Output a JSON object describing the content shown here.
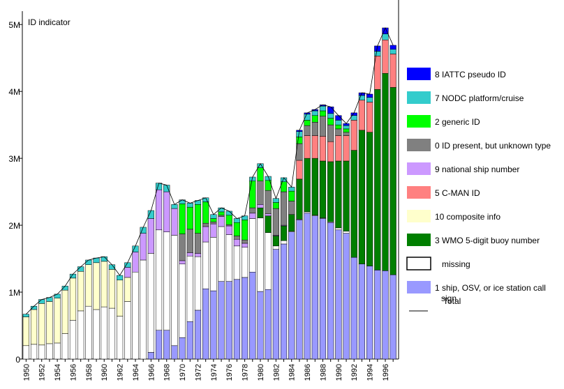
{
  "chart_data": {
    "type": "bar",
    "stacked": true,
    "title": "ID indicator",
    "xlabel": "",
    "ylabel": "",
    "ylim": [
      0,
      5200000
    ],
    "y_ticks": [
      {
        "value": 0,
        "label": "0"
      },
      {
        "value": 1000000,
        "label": "1M"
      },
      {
        "value": 2000000,
        "label": "2M"
      },
      {
        "value": 3000000,
        "label": "3M"
      },
      {
        "value": 4000000,
        "label": "4M"
      },
      {
        "value": 5000000,
        "label": "5M"
      }
    ],
    "categories": [
      "1950",
      "1951",
      "1952",
      "1953",
      "1954",
      "1955",
      "1956",
      "1957",
      "1958",
      "1959",
      "1960",
      "1961",
      "1962",
      "1963",
      "1964",
      "1965",
      "1966",
      "1967",
      "1968",
      "1969",
      "1970",
      "1971",
      "1972",
      "1973",
      "1974",
      "1975",
      "1976",
      "1977",
      "1978",
      "1979",
      "1980",
      "1981",
      "1982",
      "1983",
      "1984",
      "1985",
      "1986",
      "1987",
      "1988",
      "1989",
      "1990",
      "1991",
      "1992",
      "1993",
      "1994",
      "1995",
      "1996",
      "1997"
    ],
    "x_tick_labels": [
      "1950",
      "1952",
      "1954",
      "1956",
      "1958",
      "1960",
      "1962",
      "1964",
      "1966",
      "1968",
      "1970",
      "1972",
      "1974",
      "1976",
      "1978",
      "1980",
      "1982",
      "1984",
      "1986",
      "1988",
      "1990",
      "1992",
      "1994",
      "1996"
    ],
    "grid": false,
    "legend_position": "right",
    "series": [
      {
        "name": "1 ship, OSV, or ice station call sign",
        "color": "#9999ff",
        "values": [
          0,
          0,
          0,
          0,
          0,
          0,
          0,
          0,
          0,
          0,
          0,
          0,
          0,
          0,
          0,
          0,
          100000,
          430000,
          430000,
          200000,
          320000,
          560000,
          730000,
          1050000,
          1020000,
          1160000,
          1160000,
          1190000,
          1220000,
          1300000,
          1010000,
          1040000,
          1640000,
          1720000,
          1900000,
          2080000,
          2180000,
          2140000,
          2100000,
          2040000,
          1930000,
          1880000,
          1520000,
          1420000,
          1390000,
          1330000,
          1320000,
          1260000
        ]
      },
      {
        "name": "missing",
        "color": "#ffffff",
        "values": [
          200000,
          220000,
          210000,
          230000,
          240000,
          380000,
          580000,
          720000,
          790000,
          740000,
          780000,
          760000,
          640000,
          860000,
          1300000,
          1480000,
          1480000,
          1500000,
          1470000,
          1650000,
          1100000,
          980000,
          800000,
          700000,
          800000,
          820000,
          700000,
          500000,
          450000,
          800000,
          1100000,
          850000,
          50000,
          50000,
          10000,
          10000,
          20000,
          10000,
          10000,
          10000,
          30000,
          30000,
          0,
          0,
          0,
          0,
          0,
          0
        ]
      },
      {
        "name": "10 composite info",
        "color": "#ffffcc",
        "values": [
          430000,
          520000,
          620000,
          630000,
          670000,
          650000,
          630000,
          590000,
          620000,
          700000,
          680000,
          580000,
          540000,
          360000,
          0,
          0,
          0,
          0,
          0,
          0,
          0,
          0,
          0,
          0,
          0,
          0,
          0,
          0,
          0,
          0,
          0,
          0,
          0,
          0,
          0,
          0,
          0,
          0,
          0,
          0,
          0,
          0,
          0,
          0,
          0,
          0,
          0,
          0
        ]
      },
      {
        "name": "3 WMO 5-digit buoy number",
        "color": "#007f00",
        "values": [
          0,
          0,
          0,
          0,
          0,
          0,
          0,
          0,
          0,
          0,
          0,
          0,
          0,
          0,
          0,
          0,
          0,
          0,
          0,
          0,
          0,
          0,
          0,
          0,
          0,
          0,
          0,
          0,
          0,
          0,
          150000,
          250000,
          150000,
          220000,
          250000,
          600000,
          800000,
          850000,
          850000,
          900000,
          1000000,
          1050000,
          1600000,
          2000000,
          2000000,
          2700000,
          2950000,
          2800000
        ]
      },
      {
        "name": "5 C-MAN ID",
        "color": "#ff8080",
        "values": [
          0,
          0,
          0,
          0,
          0,
          0,
          0,
          0,
          0,
          0,
          0,
          0,
          0,
          0,
          0,
          0,
          0,
          0,
          0,
          0,
          0,
          0,
          0,
          0,
          0,
          0,
          0,
          0,
          0,
          0,
          0,
          0,
          0,
          0,
          0,
          280000,
          340000,
          340000,
          370000,
          300000,
          380000,
          380000,
          450000,
          450000,
          450000,
          500000,
          500000,
          500000
        ]
      },
      {
        "name": "9 national ship number",
        "color": "#cc99ff",
        "values": [
          0,
          0,
          0,
          0,
          0,
          0,
          0,
          0,
          0,
          0,
          0,
          0,
          0,
          150000,
          300000,
          400000,
          520000,
          600000,
          600000,
          400000,
          50000,
          50000,
          50000,
          230000,
          200000,
          150000,
          130000,
          100000,
          60000,
          80000,
          50000,
          30000,
          10000,
          10000,
          0,
          0,
          0,
          0,
          0,
          0,
          0,
          0,
          0,
          0,
          0,
          0,
          0,
          0
        ]
      },
      {
        "name": "0 ID present, but unknown type",
        "color": "#808080",
        "values": [
          0,
          0,
          0,
          0,
          0,
          0,
          0,
          0,
          0,
          0,
          0,
          0,
          0,
          0,
          0,
          0,
          0,
          0,
          0,
          0,
          400000,
          350000,
          300000,
          50000,
          30000,
          20000,
          20000,
          50000,
          50000,
          80000,
          350000,
          350000,
          400000,
          500000,
          200000,
          250000,
          150000,
          200000,
          300000,
          250000,
          100000,
          50000,
          0,
          0,
          0,
          0,
          0,
          0
        ]
      },
      {
        "name": "2 generic ID",
        "color": "#00ff00",
        "values": [
          0,
          0,
          0,
          0,
          0,
          0,
          0,
          0,
          0,
          0,
          0,
          0,
          0,
          0,
          0,
          0,
          0,
          0,
          0,
          0,
          450000,
          330000,
          430000,
          320000,
          50000,
          50000,
          140000,
          200000,
          300000,
          400000,
          200000,
          150000,
          90000,
          150000,
          150000,
          100000,
          80000,
          100000,
          80000,
          100000,
          60000,
          50000,
          0,
          0,
          0,
          0,
          0,
          0
        ]
      },
      {
        "name": "7 NODC platform/cruise",
        "color": "#33cccc",
        "values": [
          40000,
          50000,
          60000,
          60000,
          60000,
          60000,
          60000,
          70000,
          70000,
          70000,
          70000,
          70000,
          70000,
          70000,
          90000,
          90000,
          120000,
          100000,
          100000,
          60000,
          60000,
          60000,
          60000,
          60000,
          60000,
          60000,
          60000,
          60000,
          60000,
          60000,
          60000,
          60000,
          60000,
          60000,
          60000,
          80000,
          90000,
          70000,
          70000,
          70000,
          70000,
          50000,
          70000,
          70000,
          70000,
          70000,
          90000,
          70000
        ]
      },
      {
        "name": "8 IATTC pseudo ID",
        "color": "#0000ff",
        "values": [
          0,
          0,
          0,
          0,
          0,
          0,
          0,
          0,
          0,
          0,
          0,
          0,
          0,
          0,
          0,
          0,
          0,
          0,
          0,
          0,
          0,
          0,
          0,
          0,
          0,
          0,
          0,
          0,
          0,
          0,
          0,
          0,
          0,
          0,
          0,
          20000,
          20000,
          20000,
          20000,
          100000,
          70000,
          30000,
          40000,
          40000,
          50000,
          80000,
          90000,
          60000
        ]
      }
    ],
    "total_series": {
      "name": "Total",
      "color": "#000000"
    },
    "legend_order": [
      "8 IATTC pseudo ID",
      "7 NODC platform/cruise",
      "2 generic ID",
      "0 ID present, but unknown type",
      "9 national ship number",
      "5 C-MAN ID",
      "10 composite info",
      "3 WMO 5-digit buoy number",
      "missing",
      "1 ship, OSV, or ice station call sign",
      "Total"
    ]
  }
}
